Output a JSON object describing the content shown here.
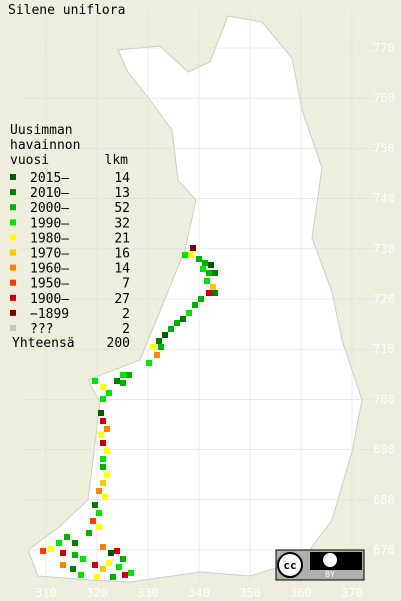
{
  "title": "Silene uniflora",
  "legend": {
    "header": [
      "Uusimman",
      "havainnon"
    ],
    "col_year": "vuosi",
    "col_count": "lkm",
    "rows": [
      {
        "label": "2015–",
        "count": 14,
        "color": "#005a00"
      },
      {
        "label": "2010–",
        "count": 13,
        "color": "#008200"
      },
      {
        "label": "2000–",
        "count": 52,
        "color": "#00b400"
      },
      {
        "label": "1990–",
        "count": 32,
        "color": "#00e600"
      },
      {
        "label": "1980–",
        "count": 21,
        "color": "#ffff00"
      },
      {
        "label": "1970–",
        "count": 16,
        "color": "#ffc800"
      },
      {
        "label": "1960–",
        "count": 14,
        "color": "#ff8200"
      },
      {
        "label": "1950–",
        "count": 7,
        "color": "#ff3c00"
      },
      {
        "label": "1900–",
        "count": 27,
        "color": "#d20000"
      },
      {
        "label": "−1899",
        "count": 2,
        "color": "#820000"
      },
      {
        "label": "???",
        "count": 2,
        "color": "#c8c8c8"
      }
    ],
    "total": {
      "label": "Yhteensä",
      "count": 200
    }
  },
  "x_axis": [
    "310",
    "320",
    "330",
    "340",
    "350",
    "360",
    "370"
  ],
  "y_axis": [
    "770",
    "760",
    "750",
    "740",
    "730",
    "720",
    "710",
    "700",
    "690",
    "680",
    "670"
  ],
  "license": {
    "cc": "cc",
    "by": "BY"
  }
}
